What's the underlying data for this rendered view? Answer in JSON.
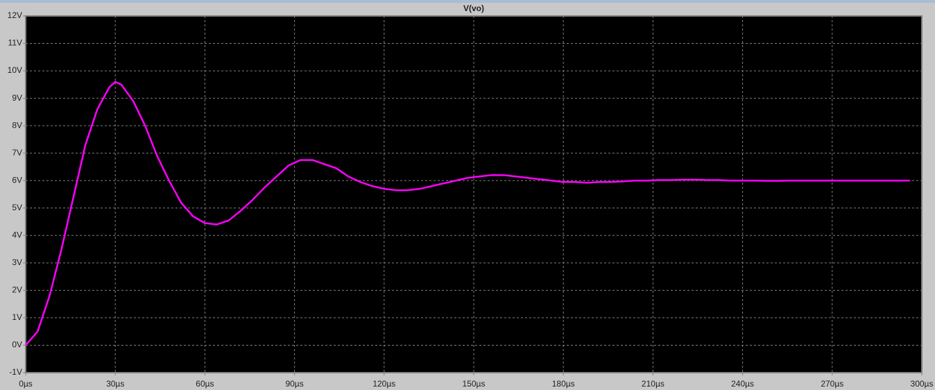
{
  "chart_data": {
    "type": "line",
    "x": [
      0,
      4,
      8,
      12,
      16,
      20,
      24,
      28,
      30,
      32,
      36,
      40,
      44,
      48,
      52,
      56,
      60,
      64,
      68,
      72,
      76,
      80,
      84,
      88,
      92,
      96,
      100,
      104,
      108,
      112,
      116,
      120,
      124,
      128,
      132,
      136,
      140,
      144,
      148,
      152,
      156,
      160,
      164,
      168,
      172,
      176,
      180,
      184,
      188,
      192,
      196,
      200,
      204,
      208,
      212,
      216,
      220,
      224,
      228,
      232,
      236,
      240,
      244,
      248,
      252,
      256,
      260,
      264,
      268,
      272,
      276,
      280,
      284,
      288,
      292,
      296
    ],
    "series": [
      {
        "name": "V(vo)",
        "color": "#ff00ff",
        "values": [
          0,
          0.5,
          1.8,
          3.5,
          5.4,
          7.3,
          8.6,
          9.4,
          9.6,
          9.5,
          8.9,
          8.0,
          6.9,
          6.0,
          5.2,
          4.7,
          4.45,
          4.4,
          4.55,
          4.9,
          5.3,
          5.75,
          6.15,
          6.55,
          6.75,
          6.75,
          6.6,
          6.45,
          6.15,
          5.95,
          5.8,
          5.7,
          5.65,
          5.65,
          5.7,
          5.8,
          5.9,
          6.0,
          6.1,
          6.15,
          6.2,
          6.2,
          6.15,
          6.1,
          6.05,
          6.0,
          5.95,
          5.95,
          5.92,
          5.95,
          5.95,
          5.97,
          6.0,
          6.0,
          6.02,
          6.02,
          6.03,
          6.03,
          6.02,
          6.02,
          6.0,
          6.0,
          6.0,
          5.99,
          5.99,
          6.0,
          6.0,
          6.0,
          6.0,
          6.0,
          6.0,
          6.0,
          6.0,
          6.0,
          6.0,
          6.0
        ]
      }
    ],
    "xlim": [
      0,
      300
    ],
    "xticks": [
      {
        "value": 0,
        "label": "0µs"
      },
      {
        "value": 30,
        "label": "30µs"
      },
      {
        "value": 60,
        "label": "60µs"
      },
      {
        "value": 90,
        "label": "90µs"
      },
      {
        "value": 120,
        "label": "120µs"
      },
      {
        "value": 150,
        "label": "150µs"
      },
      {
        "value": 180,
        "label": "180µs"
      },
      {
        "value": 210,
        "label": "210µs"
      },
      {
        "value": 240,
        "label": "240µs"
      },
      {
        "value": 270,
        "label": "270µs"
      },
      {
        "value": 300,
        "label": "300µs"
      }
    ],
    "ylim": [
      -1,
      12
    ],
    "yticks": [
      {
        "value": -1,
        "label": "-1V"
      },
      {
        "value": 0,
        "label": "0V"
      },
      {
        "value": 1,
        "label": "1V"
      },
      {
        "value": 2,
        "label": "2V"
      },
      {
        "value": 3,
        "label": "3V"
      },
      {
        "value": 4,
        "label": "4V"
      },
      {
        "value": 5,
        "label": "5V"
      },
      {
        "value": 6,
        "label": "6V"
      },
      {
        "value": 7,
        "label": "7V"
      },
      {
        "value": 8,
        "label": "8V"
      },
      {
        "value": 9,
        "label": "9V"
      },
      {
        "value": 10,
        "label": "10V"
      },
      {
        "value": 11,
        "label": "11V"
      },
      {
        "value": 12,
        "label": "12V"
      }
    ],
    "grid": true
  }
}
